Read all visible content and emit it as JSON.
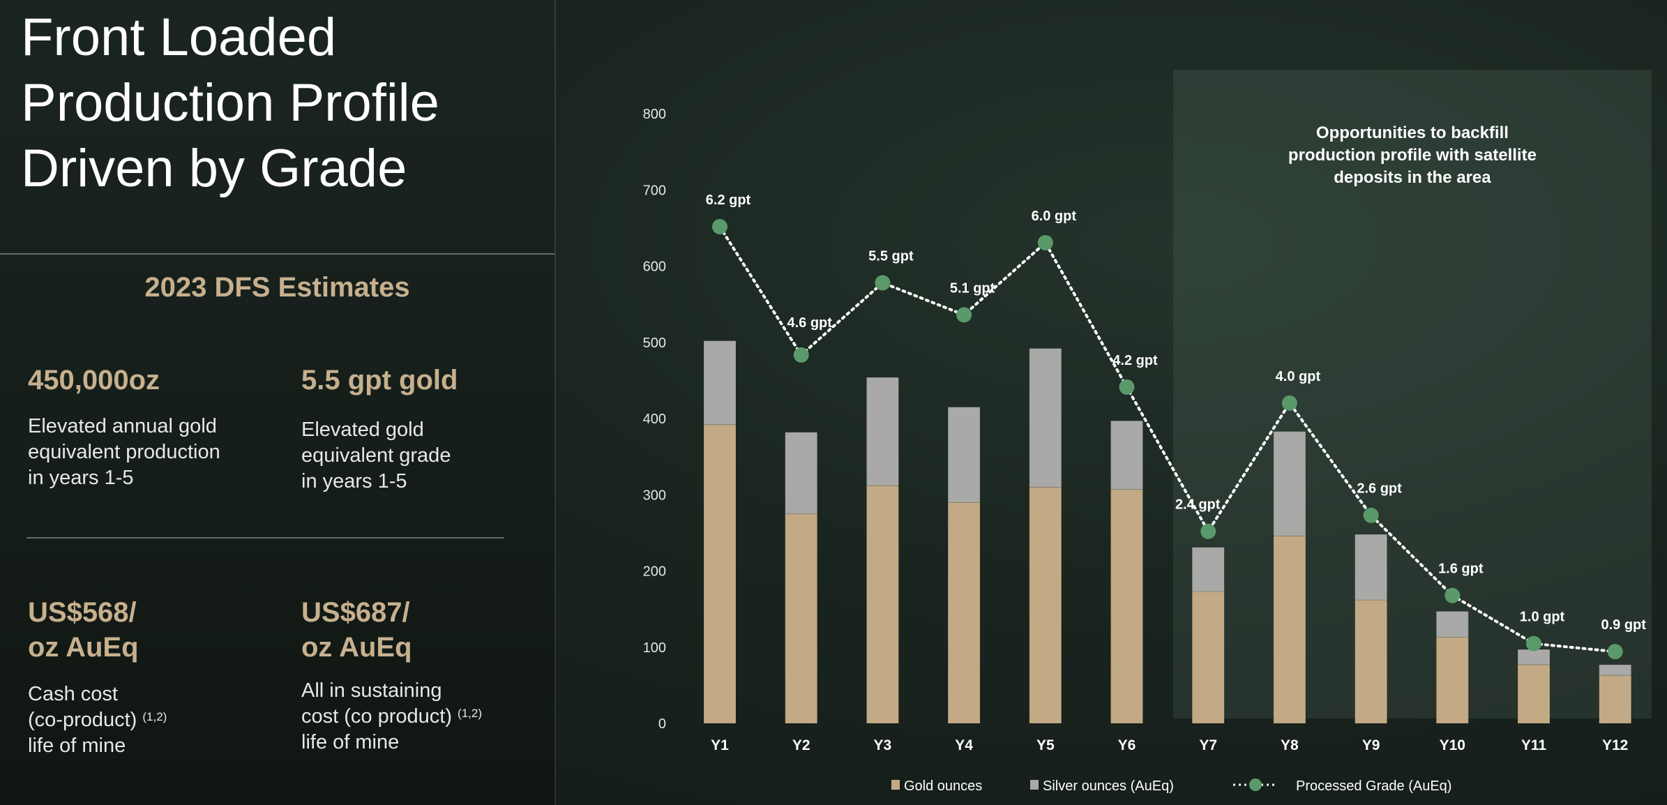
{
  "left": {
    "title_line1": "Front Loaded",
    "title_line2": "Production Profile",
    "title_line3": "Driven by Grade",
    "subtitle": "2023 DFS Estimates",
    "stats": [
      {
        "value_lines": [
          "450,000oz"
        ],
        "desc_lines": [
          "Elevated annual gold",
          "equivalent production",
          "in years 1-5"
        ]
      },
      {
        "value_lines": [
          "5.5 gpt gold"
        ],
        "desc_lines": [
          "Elevated gold",
          "equivalent grade",
          "in years 1-5"
        ]
      },
      {
        "value_lines": [
          "US$568/",
          "oz AuEq"
        ],
        "desc_lines": [
          "Cash cost",
          "(co-product)",
          "life of mine"
        ],
        "desc_sup": "(1,2)"
      },
      {
        "value_lines": [
          "US$687/",
          "oz AuEq"
        ],
        "desc_lines": [
          "All in sustaining",
          "cost (co product)",
          "life of mine"
        ],
        "desc_sup": "(1,2)"
      }
    ]
  },
  "chart_data": {
    "type": "bar",
    "stacked": true,
    "categories": [
      "Y1",
      "Y2",
      "Y3",
      "Y4",
      "Y5",
      "Y6",
      "Y7",
      "Y8",
      "Y9",
      "Y10",
      "Y11",
      "Y12"
    ],
    "ylim": [
      0,
      800
    ],
    "yticks": [
      0,
      100,
      200,
      300,
      400,
      500,
      600,
      700,
      800
    ],
    "series": [
      {
        "name": "Gold ounces",
        "color": "#c3aa86",
        "values": [
          392,
          275,
          312,
          290,
          310,
          307,
          173,
          246,
          162,
          113,
          77,
          63
        ]
      },
      {
        "name": "Silver ounces (AuEq)",
        "color": "#a9aaa8",
        "values": [
          110,
          107,
          142,
          125,
          182,
          90,
          58,
          137,
          86,
          34,
          20,
          14
        ]
      }
    ],
    "line_series": {
      "name": "Processed Grade (AuEq)",
      "color": "#5a9a6a",
      "label_values": [
        "6.2 gpt",
        "4.6 gpt",
        "5.5 gpt",
        "5.1 gpt",
        "6.0 gpt",
        "4.2 gpt",
        "2.4 gpt",
        "4.0 gpt",
        "2.6 gpt",
        "1.6 gpt",
        "1.0 gpt",
        "0.9 gpt"
      ],
      "values": [
        6.2,
        4.6,
        5.5,
        5.1,
        6.0,
        4.2,
        2.4,
        4.0,
        2.6,
        1.6,
        1.0,
        0.9
      ]
    },
    "highlight_from_category": "Y7",
    "annotation": [
      "Opportunities to backfill",
      "production profile with satellite",
      "deposits in the area"
    ],
    "legend_position": "bottom",
    "grid": false
  }
}
